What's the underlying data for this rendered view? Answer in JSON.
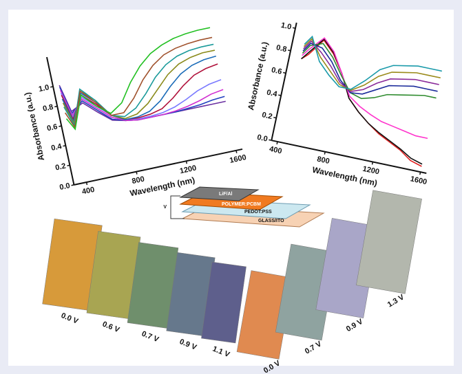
{
  "chart_data": [
    {
      "type": "line",
      "x_label": "Wavelength (nm)",
      "y_label": "Absorbance (a.u.)",
      "x": [
        350,
        400,
        500,
        600,
        700,
        800,
        900,
        1000,
        1100,
        1200,
        1300,
        1400,
        1500,
        1600
      ],
      "xlim": [
        300,
        1650
      ],
      "xticks": [
        400,
        800,
        1200,
        1600
      ],
      "ylim": [
        0,
        1.3
      ],
      "yticks": [
        {
          "value": 0,
          "label": "0.0"
        },
        0.2,
        0.4,
        0.6,
        0.8,
        {
          "value": 1,
          "label": "1.0"
        }
      ],
      "series": [
        {
          "color": "#6a2fa0",
          "values": [
            1.0,
            0.72,
            0.78,
            0.66,
            0.55,
            0.52,
            0.5,
            0.5,
            0.5,
            0.5,
            0.5,
            0.5,
            0.5,
            0.5
          ]
        },
        {
          "color": "#1f3fbf",
          "values": [
            0.98,
            0.7,
            0.8,
            0.68,
            0.56,
            0.52,
            0.5,
            0.5,
            0.5,
            0.5,
            0.51,
            0.52,
            0.54,
            0.55
          ]
        },
        {
          "color": "#d12fd1",
          "values": [
            0.95,
            0.68,
            0.82,
            0.7,
            0.58,
            0.52,
            0.5,
            0.5,
            0.5,
            0.51,
            0.53,
            0.56,
            0.6,
            0.62
          ]
        },
        {
          "color": "#7a7aff",
          "values": [
            0.92,
            0.66,
            0.84,
            0.72,
            0.6,
            0.53,
            0.51,
            0.51,
            0.52,
            0.55,
            0.6,
            0.66,
            0.7,
            0.72
          ]
        },
        {
          "color": "#b0103a",
          "values": [
            0.9,
            0.64,
            0.86,
            0.74,
            0.6,
            0.53,
            0.52,
            0.53,
            0.56,
            0.64,
            0.74,
            0.82,
            0.86,
            0.88
          ]
        },
        {
          "color": "#1a6bb8",
          "values": [
            0.86,
            0.62,
            0.88,
            0.76,
            0.6,
            0.53,
            0.53,
            0.56,
            0.64,
            0.76,
            0.86,
            0.92,
            0.95,
            0.96
          ]
        },
        {
          "color": "#8a8a1a",
          "values": [
            0.82,
            0.6,
            0.9,
            0.78,
            0.6,
            0.54,
            0.56,
            0.64,
            0.76,
            0.88,
            0.96,
            1.0,
            1.02,
            1.02
          ]
        },
        {
          "color": "#1a9a9a",
          "values": [
            0.78,
            0.58,
            0.92,
            0.78,
            0.6,
            0.56,
            0.62,
            0.74,
            0.88,
            0.98,
            1.04,
            1.07,
            1.08,
            1.08
          ]
        },
        {
          "color": "#a0522d",
          "values": [
            0.72,
            0.56,
            0.9,
            0.76,
            0.6,
            0.6,
            0.72,
            0.88,
            1.0,
            1.08,
            1.12,
            1.14,
            1.15,
            1.15
          ]
        },
        {
          "color": "#22c022",
          "values": [
            0.66,
            0.54,
            0.86,
            0.72,
            0.62,
            0.7,
            0.88,
            1.02,
            1.12,
            1.18,
            1.22,
            1.24,
            1.25,
            1.25
          ]
        }
      ]
    },
    {
      "type": "line",
      "x_label": "Wavelength (nm)",
      "y_label": "Absorbance (a.u.)",
      "x": [
        450,
        500,
        600,
        700,
        800,
        900,
        1000,
        1100,
        1200,
        1300,
        1400,
        1500,
        1600
      ],
      "xlim": [
        350,
        1650
      ],
      "xticks": [
        400,
        800,
        1200,
        1600
      ],
      "ylim": [
        0,
        1.05
      ],
      "yticks": [
        {
          "value": 0,
          "label": "0.0"
        },
        0.2,
        0.4,
        0.6,
        0.8,
        {
          "value": 1,
          "label": "1.0"
        }
      ],
      "series": [
        {
          "color": "#e02020",
          "values": [
            0.75,
            0.8,
            0.95,
            0.85,
            0.7,
            0.5,
            0.4,
            0.32,
            0.25,
            0.2,
            0.15,
            0.08,
            0.05
          ]
        },
        {
          "color": "#111111",
          "values": [
            0.75,
            0.82,
            0.96,
            0.86,
            0.7,
            0.5,
            0.4,
            0.32,
            0.26,
            0.21,
            0.16,
            0.1,
            0.07
          ]
        },
        {
          "color": "#ff33cc",
          "values": [
            0.78,
            0.85,
            0.97,
            0.87,
            0.7,
            0.52,
            0.45,
            0.4,
            0.36,
            0.34,
            0.32,
            0.3,
            0.3
          ]
        },
        {
          "color": "#2e8b2e",
          "values": [
            0.8,
            0.88,
            0.92,
            0.82,
            0.68,
            0.55,
            0.52,
            0.55,
            0.6,
            0.62,
            0.64,
            0.66,
            0.66
          ]
        },
        {
          "color": "#1a2a9a",
          "values": [
            0.82,
            0.9,
            0.88,
            0.78,
            0.64,
            0.55,
            0.56,
            0.62,
            0.68,
            0.7,
            0.72,
            0.72,
            0.72
          ]
        },
        {
          "color": "#8a2a9a",
          "values": [
            0.84,
            0.92,
            0.84,
            0.74,
            0.62,
            0.56,
            0.6,
            0.68,
            0.74,
            0.76,
            0.78,
            0.78,
            0.78
          ]
        },
        {
          "color": "#9a8a1a",
          "values": [
            0.86,
            0.94,
            0.8,
            0.7,
            0.6,
            0.57,
            0.64,
            0.74,
            0.8,
            0.82,
            0.84,
            0.84,
            0.84
          ]
        },
        {
          "color": "#1a9aaa",
          "values": [
            0.88,
            0.96,
            0.76,
            0.66,
            0.58,
            0.58,
            0.68,
            0.8,
            0.86,
            0.88,
            0.9,
            0.9,
            0.9
          ]
        }
      ]
    }
  ],
  "device": {
    "bias": "V",
    "layers": [
      "LiF/Al",
      "POLYMER:PCBM",
      "PEDOT:PSS",
      "GLASS/ITO"
    ]
  },
  "films": [
    {
      "items": [
        {
          "label": "0.0 V",
          "color": "#d79a3a"
        },
        {
          "label": "0.6 V",
          "color": "#a8a552"
        },
        {
          "label": "0.7 V",
          "color": "#6f8f6c"
        },
        {
          "label": "0.9 V",
          "color": "#66788c"
        },
        {
          "label": "1.1 V",
          "color": "#5e5f8c"
        }
      ]
    },
    {
      "items": [
        {
          "label": "0.0 V",
          "color": "#e08a50"
        },
        {
          "label": "0.7 V",
          "color": "#8fa3a0"
        },
        {
          "label": "0.9 V",
          "color": "#a9a6c8"
        },
        {
          "label": "1.3 V",
          "color": "#b3b7ad"
        }
      ]
    }
  ]
}
